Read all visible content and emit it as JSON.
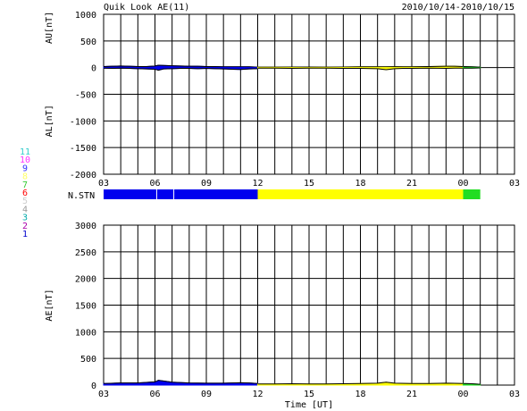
{
  "header": {
    "title": "Quik Look AE(11)",
    "date_range": "2010/10/14-2010/10/15"
  },
  "station_legend": {
    "items": [
      {
        "label": "11",
        "color": "#33cccc"
      },
      {
        "label": "10",
        "color": "#ff33ff"
      },
      {
        "label": "9",
        "color": "#3333ff"
      },
      {
        "label": "8",
        "color": "#ffff66"
      },
      {
        "label": "7",
        "color": "#33cc33"
      },
      {
        "label": "6",
        "color": "#ff0000"
      },
      {
        "label": "5",
        "color": "#cccccc"
      },
      {
        "label": "4",
        "color": "#999999"
      },
      {
        "label": "3",
        "color": "#00aaaa"
      },
      {
        "label": "2",
        "color": "#aa00aa"
      },
      {
        "label": "1",
        "color": "#0000cc"
      }
    ]
  },
  "nstn": {
    "label": "N.STN",
    "segments": [
      {
        "start": 3,
        "end": 12,
        "color": "#0000ee"
      },
      {
        "start": 12,
        "end": 24,
        "color": "#ffff00"
      },
      {
        "start": 24,
        "end": 25,
        "color": "#22dd22"
      }
    ]
  },
  "chart_data": [
    {
      "type": "line",
      "panel": "AU/AL",
      "ylabel_top": "AU[nT]",
      "ylabel_bottom": "AL[nT]",
      "ylim": [
        -2000,
        1000
      ],
      "yticks": [
        1000,
        500,
        0,
        -500,
        -1000,
        -1500,
        -2000
      ],
      "xlim": [
        3,
        27
      ],
      "xticks": [
        "03",
        "06",
        "09",
        "12",
        "15",
        "18",
        "21",
        "00",
        "03"
      ],
      "grid": true,
      "series": [
        {
          "color": "#0000ee",
          "x": [
            3,
            3.5,
            4,
            4.5,
            5,
            5.5,
            6,
            6.2,
            6.5,
            7,
            7.5,
            8,
            8.5,
            9,
            9.5,
            10,
            10.5,
            11,
            11.5,
            12
          ],
          "au": [
            20,
            25,
            30,
            25,
            20,
            20,
            30,
            45,
            40,
            35,
            30,
            25,
            25,
            20,
            20,
            15,
            15,
            15,
            15,
            10
          ],
          "al": [
            -10,
            -15,
            -10,
            -15,
            -20,
            -25,
            -30,
            -50,
            -25,
            -20,
            -15,
            -15,
            -20,
            -15,
            -20,
            -25,
            -30,
            -35,
            -25,
            -20
          ]
        },
        {
          "color": "#ffff00",
          "x": [
            12,
            13,
            14,
            15,
            16,
            17,
            18,
            19,
            19.5,
            20,
            20.5,
            21,
            22,
            23,
            23.5,
            24
          ],
          "au": [
            10,
            10,
            12,
            12,
            10,
            12,
            15,
            15,
            15,
            18,
            15,
            15,
            20,
            25,
            25,
            20
          ],
          "al": [
            -10,
            -10,
            -15,
            -10,
            -10,
            -15,
            -15,
            -20,
            -40,
            -20,
            -15,
            -15,
            -10,
            -15,
            -10,
            -10
          ]
        },
        {
          "color": "#22dd22",
          "x": [
            24,
            24.5,
            25
          ],
          "au": [
            20,
            15,
            10
          ],
          "al": [
            -10,
            -10,
            -5
          ]
        }
      ]
    },
    {
      "type": "area",
      "panel": "AE",
      "ylabel": "AE[nT]",
      "xlabel": "Time [UT]",
      "ylim": [
        0,
        3000
      ],
      "yticks": [
        3000,
        2500,
        2000,
        1500,
        1000,
        500,
        0
      ],
      "xlim": [
        3,
        27
      ],
      "xticks": [
        "03",
        "06",
        "09",
        "12",
        "15",
        "18",
        "21",
        "00",
        "03"
      ],
      "grid": true,
      "series": [
        {
          "color": "#0000ee",
          "x": [
            3,
            4,
            5,
            6,
            6.2,
            7,
            8,
            9,
            10,
            11,
            11.5,
            12
          ],
          "values": [
            30,
            40,
            40,
            60,
            90,
            55,
            40,
            35,
            35,
            45,
            40,
            30
          ]
        },
        {
          "color": "#ffff00",
          "x": [
            12,
            13,
            14,
            15,
            16,
            17,
            18,
            19,
            19.5,
            20,
            21,
            22,
            23,
            24
          ],
          "values": [
            20,
            20,
            25,
            20,
            20,
            25,
            30,
            35,
            55,
            35,
            30,
            30,
            35,
            30
          ]
        },
        {
          "color": "#22dd22",
          "x": [
            24,
            24.5,
            25
          ],
          "values": [
            30,
            25,
            15
          ]
        }
      ]
    }
  ],
  "icons": {
    "legend": "station-count-legend"
  }
}
